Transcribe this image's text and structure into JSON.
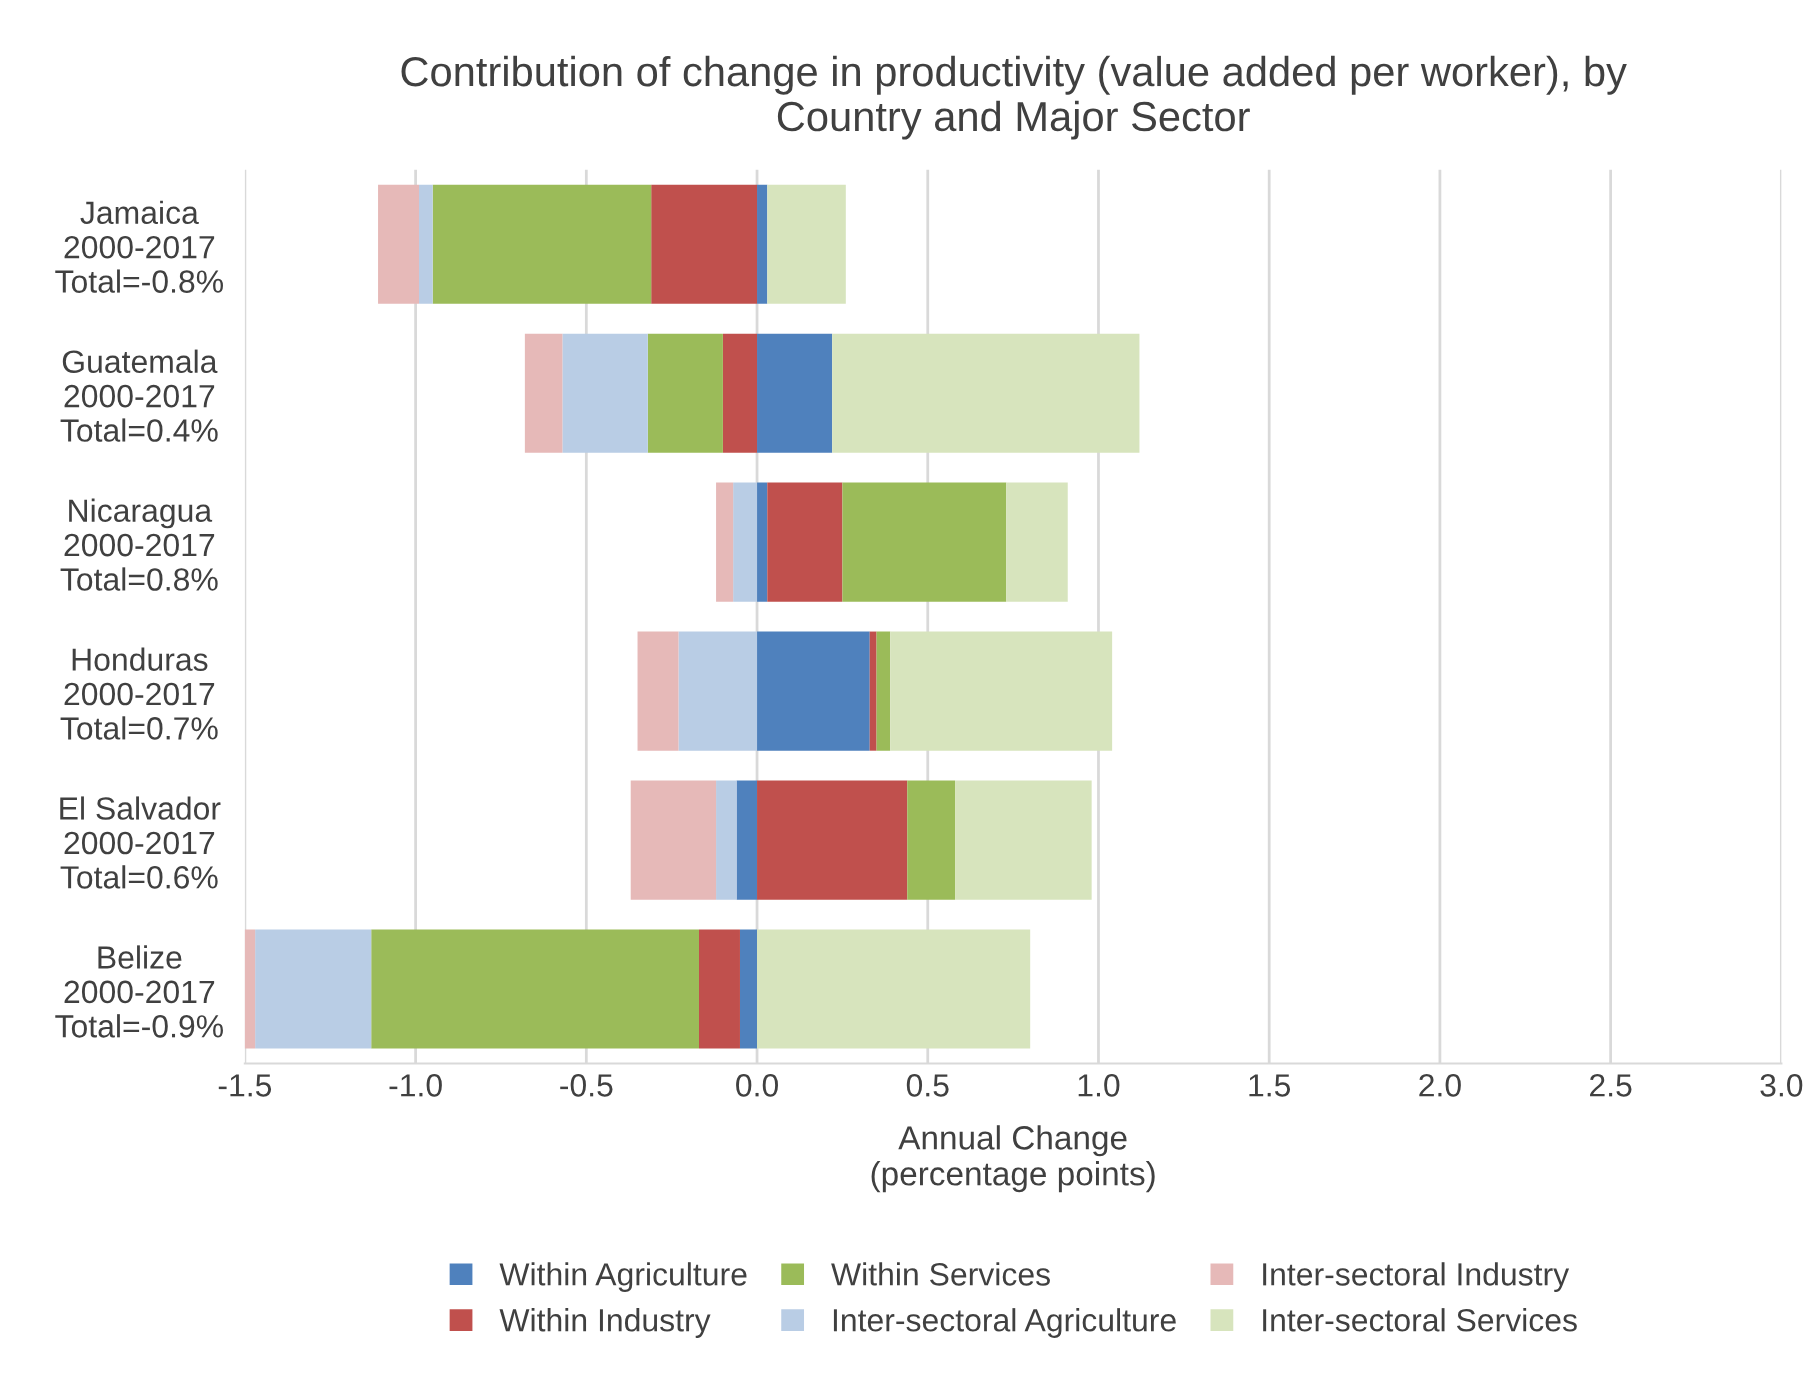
{
  "chart_data": {
    "type": "bar",
    "orientation": "horizontal",
    "stacked": true,
    "title": "Contribution of change in productivity (value added per worker), by\nCountry and Major Sector",
    "xlabel": "Annual Change\n(percentage points)",
    "categories": [
      "Jamaica\n2000-2017\nTotal=-0.8%",
      "Guatemala\n2000-2017\nTotal=0.4%",
      "Nicaragua\n2000-2017\nTotal=0.8%",
      "Honduras\n2000-2017\nTotal=0.7%",
      "El Salvador\n2000-2017\nTotal=0.6%",
      "Belize\n2000-2017\nTotal=-0.9%"
    ],
    "series": [
      {
        "name": "Within Agriculture",
        "color": "#4f81bd",
        "values": [
          0.03,
          0.22,
          0.03,
          0.33,
          -0.06,
          -0.05
        ]
      },
      {
        "name": "Within Industry",
        "color": "#c0504d",
        "values": [
          -0.31,
          -0.1,
          0.22,
          0.02,
          0.44,
          -0.12
        ]
      },
      {
        "name": "Within Services",
        "color": "#9bbb59",
        "values": [
          -0.64,
          -0.22,
          0.48,
          0.04,
          0.14,
          -0.96
        ]
      },
      {
        "name": "Inter-sectoral Agriculture",
        "color": "#b9cde5",
        "values": [
          -0.04,
          -0.25,
          -0.07,
          -0.23,
          -0.06,
          -0.34
        ]
      },
      {
        "name": "Inter-sectoral Industry",
        "color": "#e6b9b8",
        "values": [
          -0.12,
          -0.11,
          -0.05,
          -0.12,
          -0.25,
          -0.04
        ]
      },
      {
        "name": "Inter-sectoral Services",
        "color": "#d7e4bd",
        "values": [
          0.23,
          0.9,
          0.18,
          0.65,
          0.4,
          0.8
        ]
      }
    ],
    "xlim": [
      -1.5,
      3.0
    ],
    "xticks": [
      {
        "value": -1.5,
        "label": "-1.5"
      },
      {
        "value": -1.0,
        "label": "-1.0"
      },
      {
        "value": -0.5,
        "label": "-0.5"
      },
      {
        "value": 0.0,
        "label": "0.0"
      },
      {
        "value": 0.5,
        "label": "0.5"
      },
      {
        "value": 1.0,
        "label": "1.0"
      },
      {
        "value": 1.5,
        "label": "1.5"
      },
      {
        "value": 2.0,
        "label": "2.0"
      },
      {
        "value": 2.5,
        "label": "2.5"
      },
      {
        "value": 3.0,
        "label": "3.0"
      }
    ],
    "grid": "x",
    "legend": "bottom"
  }
}
